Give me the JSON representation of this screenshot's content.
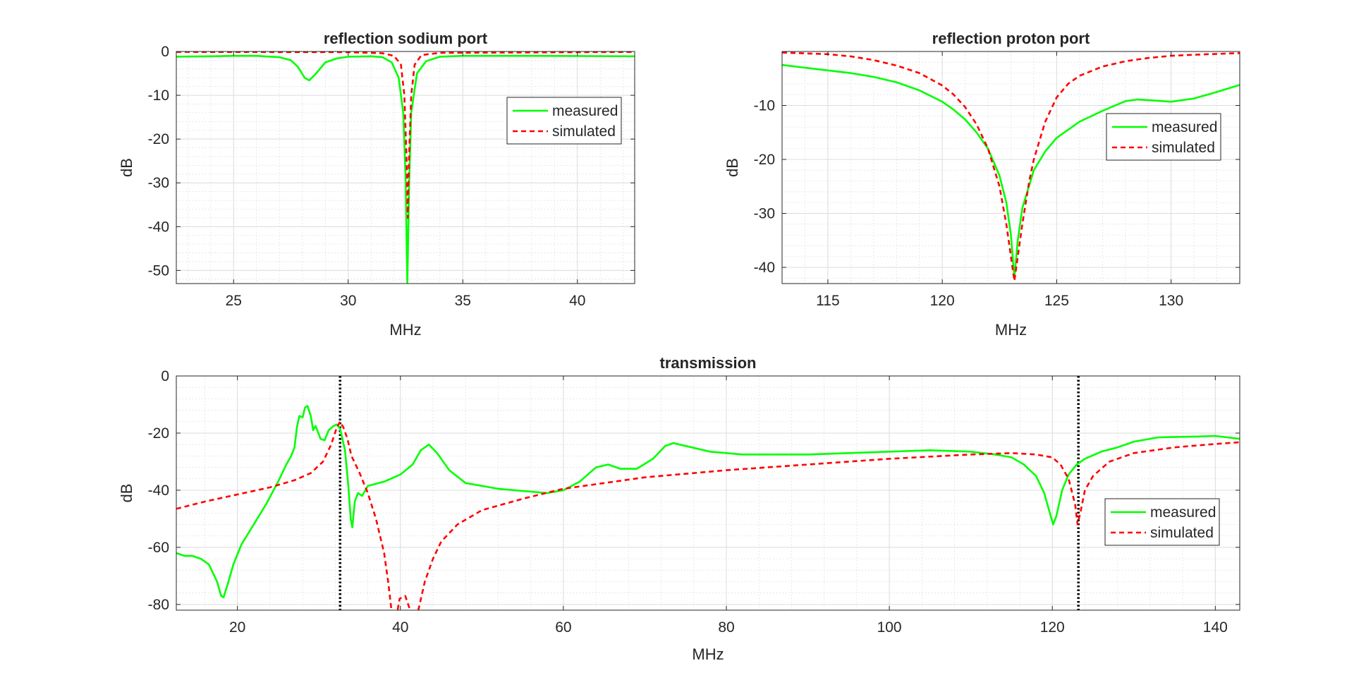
{
  "chart_data": [
    {
      "type": "line",
      "title": "reflection sodium port",
      "xlabel": "MHz",
      "ylabel": "dB",
      "xlim": [
        22.5,
        42.5
      ],
      "ylim": [
        -53,
        0
      ],
      "xticks": [
        25,
        30,
        35,
        40
      ],
      "yticks": [
        0,
        -10,
        -20,
        -30,
        -40,
        -50
      ],
      "grid": true,
      "minor_grid": true,
      "legend_position": "center-right",
      "series": [
        {
          "name": "measured",
          "style": "solid",
          "color": "#00ff00",
          "points": [
            [
              22.5,
              -1.2
            ],
            [
              24,
              -1.1
            ],
            [
              25,
              -1.0
            ],
            [
              26,
              -1.0
            ],
            [
              27,
              -1.3
            ],
            [
              27.5,
              -2.0
            ],
            [
              27.8,
              -3.5
            ],
            [
              28.1,
              -6.0
            ],
            [
              28.3,
              -6.6
            ],
            [
              28.6,
              -5.0
            ],
            [
              29,
              -2.5
            ],
            [
              29.5,
              -1.6
            ],
            [
              30,
              -1.2
            ],
            [
              31,
              -1.1
            ],
            [
              31.5,
              -1.3
            ],
            [
              31.9,
              -2.5
            ],
            [
              32.2,
              -6
            ],
            [
              32.4,
              -14
            ],
            [
              32.5,
              -28
            ],
            [
              32.58,
              -53
            ],
            [
              32.66,
              -30
            ],
            [
              32.75,
              -14
            ],
            [
              33,
              -5
            ],
            [
              33.4,
              -2.2
            ],
            [
              34,
              -1.2
            ],
            [
              35,
              -1.0
            ],
            [
              38,
              -1.0
            ],
            [
              42.5,
              -1.1
            ]
          ]
        },
        {
          "name": "simulated",
          "style": "dashed",
          "color": "#ff0000",
          "points": [
            [
              22.5,
              -0.1
            ],
            [
              30,
              -0.15
            ],
            [
              31.5,
              -0.4
            ],
            [
              32,
              -1
            ],
            [
              32.3,
              -3
            ],
            [
              32.45,
              -10
            ],
            [
              32.55,
              -25
            ],
            [
              32.6,
              -38
            ],
            [
              32.65,
              -25
            ],
            [
              32.75,
              -10
            ],
            [
              32.9,
              -3
            ],
            [
              33.2,
              -0.8
            ],
            [
              34,
              -0.3
            ],
            [
              42.5,
              -0.1
            ]
          ]
        }
      ]
    },
    {
      "type": "line",
      "title": "reflection proton port",
      "xlabel": "MHz",
      "ylabel": "dB",
      "xlim": [
        113,
        133
      ],
      "ylim": [
        -43,
        0
      ],
      "xticks": [
        115,
        120,
        125,
        130
      ],
      "yticks": [
        -10,
        -20,
        -30,
        -40
      ],
      "grid": true,
      "minor_grid": true,
      "legend_position": "center-right",
      "series": [
        {
          "name": "measured",
          "style": "solid",
          "color": "#00ff00",
          "points": [
            [
              113,
              -2.5
            ],
            [
              114,
              -3
            ],
            [
              115,
              -3.5
            ],
            [
              116,
              -4
            ],
            [
              117,
              -4.7
            ],
            [
              118,
              -5.7
            ],
            [
              119,
              -7.2
            ],
            [
              120,
              -9.3
            ],
            [
              120.5,
              -10.8
            ],
            [
              121,
              -12.6
            ],
            [
              121.5,
              -15
            ],
            [
              122,
              -18
            ],
            [
              122.5,
              -23
            ],
            [
              122.8,
              -28
            ],
            [
              123,
              -34
            ],
            [
              123.15,
              -42
            ],
            [
              123.3,
              -35
            ],
            [
              123.5,
              -29
            ],
            [
              124,
              -22
            ],
            [
              124.5,
              -18.5
            ],
            [
              125,
              -16
            ],
            [
              126,
              -13
            ],
            [
              127,
              -11
            ],
            [
              128,
              -9.2
            ],
            [
              128.5,
              -8.9
            ],
            [
              129,
              -9
            ],
            [
              130,
              -9.3
            ],
            [
              131,
              -8.7
            ],
            [
              132,
              -7.5
            ],
            [
              133,
              -6.2
            ]
          ]
        },
        {
          "name": "simulated",
          "style": "dashed",
          "color": "#ff0000",
          "points": [
            [
              113,
              -0.2
            ],
            [
              115,
              -0.5
            ],
            [
              116,
              -0.9
            ],
            [
              117,
              -1.6
            ],
            [
              118,
              -2.6
            ],
            [
              119,
              -4
            ],
            [
              120,
              -6.3
            ],
            [
              120.5,
              -8
            ],
            [
              121,
              -10.3
            ],
            [
              121.5,
              -13.5
            ],
            [
              122,
              -18
            ],
            [
              122.5,
              -25
            ],
            [
              122.8,
              -32
            ],
            [
              123.15,
              -42.5
            ],
            [
              123.5,
              -32
            ],
            [
              123.8,
              -24
            ],
            [
              124,
              -20
            ],
            [
              124.5,
              -13
            ],
            [
              125,
              -8.5
            ],
            [
              125.5,
              -6
            ],
            [
              126,
              -4.5
            ],
            [
              127,
              -2.8
            ],
            [
              128,
              -1.8
            ],
            [
              129,
              -1.2
            ],
            [
              130,
              -0.8
            ],
            [
              131,
              -0.6
            ],
            [
              133,
              -0.3
            ]
          ]
        }
      ]
    },
    {
      "type": "line",
      "title": "transmission",
      "xlabel": "MHz",
      "ylabel": "dB",
      "xlim": [
        12.5,
        143
      ],
      "ylim": [
        -82,
        0
      ],
      "xticks": [
        20,
        40,
        60,
        80,
        100,
        120,
        140
      ],
      "yticks": [
        0,
        -20,
        -40,
        -60,
        -80
      ],
      "grid": true,
      "minor_grid": true,
      "legend_position": "center-right",
      "vertical_markers": [
        32.6,
        123.2
      ],
      "series": [
        {
          "name": "measured",
          "style": "solid",
          "color": "#00ff00",
          "points": [
            [
              12.5,
              -62
            ],
            [
              13.5,
              -63
            ],
            [
              14.5,
              -63
            ],
            [
              15.5,
              -64
            ],
            [
              16.5,
              -66
            ],
            [
              17,
              -69
            ],
            [
              17.5,
              -72
            ],
            [
              18,
              -77
            ],
            [
              18.3,
              -77.5
            ],
            [
              18.8,
              -73
            ],
            [
              19.5,
              -66
            ],
            [
              20.5,
              -59
            ],
            [
              22,
              -52
            ],
            [
              23.5,
              -45
            ],
            [
              25,
              -37
            ],
            [
              26,
              -31
            ],
            [
              26.6,
              -28
            ],
            [
              27,
              -25
            ],
            [
              27.3,
              -18
            ],
            [
              27.6,
              -14
            ],
            [
              28,
              -14.5
            ],
            [
              28.3,
              -11
            ],
            [
              28.6,
              -10.5
            ],
            [
              29,
              -14
            ],
            [
              29.3,
              -19
            ],
            [
              29.6,
              -17.5
            ],
            [
              30.2,
              -22
            ],
            [
              30.7,
              -22.5
            ],
            [
              31.2,
              -19
            ],
            [
              31.8,
              -17.5
            ],
            [
              32.2,
              -17
            ],
            [
              32.6,
              -18.5
            ],
            [
              33.2,
              -26
            ],
            [
              33.6,
              -38
            ],
            [
              33.9,
              -50
            ],
            [
              34.1,
              -53
            ],
            [
              34.4,
              -44
            ],
            [
              34.8,
              -41
            ],
            [
              35.3,
              -42
            ],
            [
              36,
              -38.5
            ],
            [
              38,
              -37
            ],
            [
              40,
              -34.5
            ],
            [
              41.5,
              -31
            ],
            [
              42.5,
              -26
            ],
            [
              43.5,
              -24
            ],
            [
              44.5,
              -27
            ],
            [
              46,
              -33
            ],
            [
              48,
              -37.5
            ],
            [
              52,
              -39.5
            ],
            [
              56,
              -40.5
            ],
            [
              58,
              -41
            ],
            [
              60,
              -40
            ],
            [
              62,
              -37
            ],
            [
              64,
              -32
            ],
            [
              65.5,
              -31
            ],
            [
              67,
              -32.5
            ],
            [
              69,
              -32.5
            ],
            [
              71,
              -29
            ],
            [
              72.5,
              -24.5
            ],
            [
              73.5,
              -23.5
            ],
            [
              75,
              -24.5
            ],
            [
              78,
              -26.5
            ],
            [
              82,
              -27.5
            ],
            [
              90,
              -27.5
            ],
            [
              100,
              -26.5
            ],
            [
              105,
              -26
            ],
            [
              110,
              -26.5
            ],
            [
              113,
              -27.5
            ],
            [
              115,
              -28.5
            ],
            [
              116.5,
              -31
            ],
            [
              118,
              -35
            ],
            [
              119,
              -41
            ],
            [
              119.6,
              -47
            ],
            [
              120.1,
              -52
            ],
            [
              120.5,
              -49
            ],
            [
              121.2,
              -40
            ],
            [
              122,
              -34.5
            ],
            [
              123,
              -31
            ],
            [
              124,
              -29
            ],
            [
              126,
              -26.5
            ],
            [
              128,
              -25
            ],
            [
              130,
              -23
            ],
            [
              133,
              -21.5
            ],
            [
              138,
              -21.2
            ],
            [
              140,
              -21
            ],
            [
              143,
              -22
            ]
          ]
        },
        {
          "name": "simulated",
          "style": "dashed",
          "color": "#ff0000",
          "points": [
            [
              12.5,
              -46.5
            ],
            [
              16,
              -44
            ],
            [
              20,
              -41.5
            ],
            [
              24,
              -39
            ],
            [
              27,
              -36.5
            ],
            [
              29,
              -34
            ],
            [
              30.5,
              -30
            ],
            [
              31.5,
              -24
            ],
            [
              32.2,
              -18
            ],
            [
              32.6,
              -16
            ],
            [
              33,
              -18
            ],
            [
              33.5,
              -22
            ],
            [
              34,
              -28
            ],
            [
              35,
              -34
            ],
            [
              36,
              -41
            ],
            [
              37,
              -50
            ],
            [
              38,
              -62
            ],
            [
              38.5,
              -72
            ],
            [
              38.9,
              -82
            ],
            [
              39.3,
              -88
            ],
            [
              39.9,
              -78
            ],
            [
              40.6,
              -77
            ],
            [
              41.2,
              -82
            ],
            [
              41.7,
              -88
            ],
            [
              42.2,
              -82
            ],
            [
              43,
              -72
            ],
            [
              44,
              -64
            ],
            [
              45,
              -58
            ],
            [
              47,
              -52
            ],
            [
              50,
              -47
            ],
            [
              55,
              -43
            ],
            [
              60,
              -39.5
            ],
            [
              70,
              -35.5
            ],
            [
              80,
              -33
            ],
            [
              90,
              -31
            ],
            [
              100,
              -29
            ],
            [
              110,
              -27.5
            ],
            [
              115,
              -27
            ],
            [
              118,
              -27.5
            ],
            [
              120,
              -28.5
            ],
            [
              121,
              -31
            ],
            [
              122,
              -36
            ],
            [
              122.8,
              -45
            ],
            [
              123.1,
              -52
            ],
            [
              123.5,
              -47
            ],
            [
              124,
              -40
            ],
            [
              125,
              -35
            ],
            [
              127,
              -30
            ],
            [
              130,
              -27
            ],
            [
              135,
              -25
            ],
            [
              140,
              -23.8
            ],
            [
              143,
              -23.2
            ]
          ]
        }
      ]
    }
  ]
}
